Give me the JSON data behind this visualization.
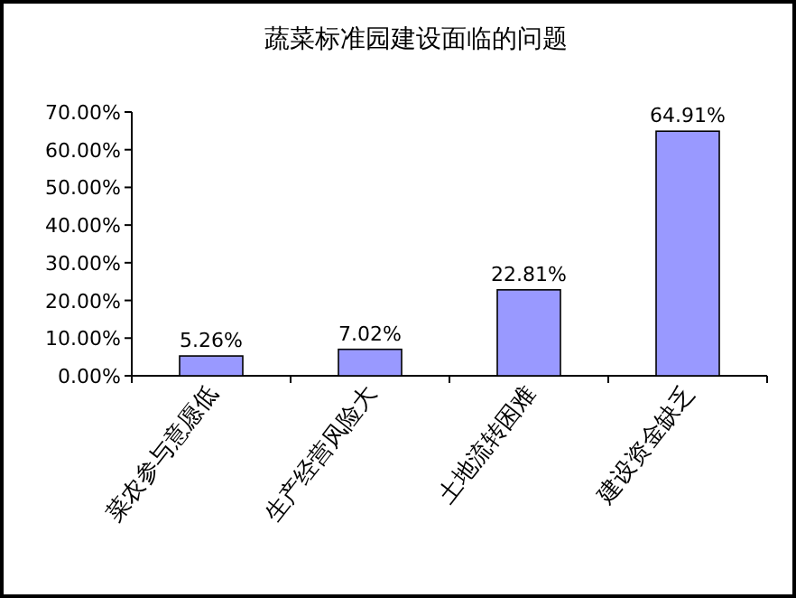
{
  "chart_data": {
    "type": "bar",
    "title": "蔬菜标准园建设面临的问题",
    "categories": [
      "菜农参与意愿低",
      "生产经营风险大",
      "土地流转困难",
      "建设资金缺乏"
    ],
    "values": [
      5.26,
      7.02,
      22.81,
      64.91
    ],
    "value_labels": [
      "5.26%",
      "7.02%",
      "22.81%",
      "64.91%"
    ],
    "color": "#9999ff",
    "ylim": [
      0,
      70
    ],
    "yticks": [
      {
        "value": 0,
        "label": "0.00%"
      },
      {
        "value": 10,
        "label": "10.00%"
      },
      {
        "value": 20,
        "label": "20.00%"
      },
      {
        "value": 30,
        "label": "30.00%"
      },
      {
        "value": 40,
        "label": "40.00%"
      },
      {
        "value": 50,
        "label": "50.00%"
      },
      {
        "value": 60,
        "label": "60.00%"
      },
      {
        "value": 70,
        "label": "70.00%"
      }
    ],
    "grid": false
  }
}
